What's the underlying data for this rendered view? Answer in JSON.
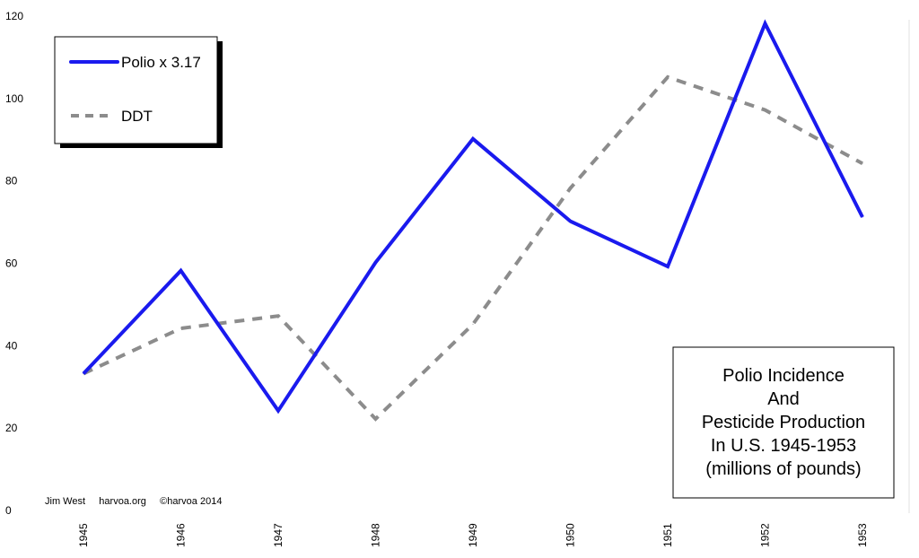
{
  "chart_data": {
    "type": "line",
    "categories": [
      "1945",
      "1946",
      "1947",
      "1948",
      "1949",
      "1950",
      "1951",
      "1952",
      "1953"
    ],
    "series": [
      {
        "name": "Polio x 3.17",
        "values": [
          33,
          58,
          24,
          60,
          90,
          70,
          59,
          118,
          71
        ],
        "color": "#1a1aee",
        "style": "solid"
      },
      {
        "name": "DDT",
        "values": [
          33,
          44,
          47,
          22,
          45,
          78,
          105,
          97,
          84
        ],
        "color": "#8c8c8c",
        "style": "dashed"
      }
    ],
    "y_ticks": [
      "0",
      "20",
      "40",
      "60",
      "80",
      "100",
      "120"
    ],
    "ylim": [
      0,
      120
    ],
    "grid": false,
    "legend_position": "top-left",
    "title_lines": [
      "Polio Incidence",
      "And",
      "Pesticide Production",
      "In U.S. 1945-1953",
      "(millions of pounds)"
    ],
    "title_position": "bottom-right",
    "credit": "Jim West     harvoa.org     ©harvoa 2014"
  }
}
